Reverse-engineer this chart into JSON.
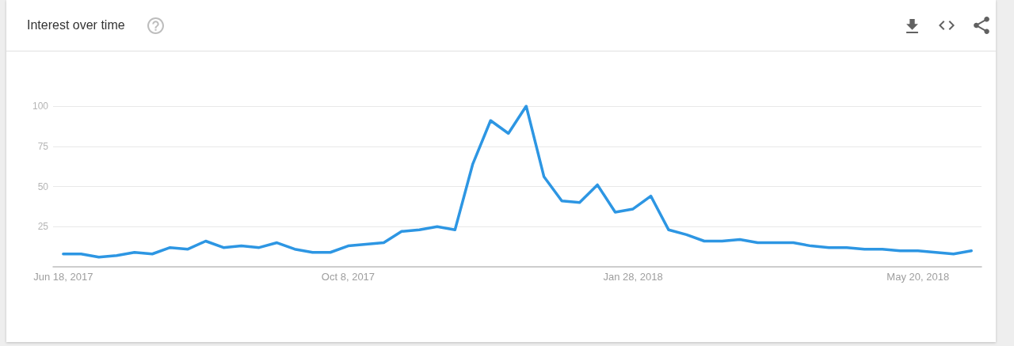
{
  "chart_data": {
    "type": "line",
    "title": "Interest over time",
    "x": [
      "2017-06-18",
      "2017-06-25",
      "2017-07-02",
      "2017-07-09",
      "2017-07-16",
      "2017-07-23",
      "2017-07-30",
      "2017-08-06",
      "2017-08-13",
      "2017-08-20",
      "2017-08-27",
      "2017-09-03",
      "2017-09-10",
      "2017-09-17",
      "2017-09-24",
      "2017-10-01",
      "2017-10-08",
      "2017-10-15",
      "2017-10-22",
      "2017-10-29",
      "2017-11-05",
      "2017-11-12",
      "2017-11-19",
      "2017-11-26",
      "2017-12-03",
      "2017-12-10",
      "2017-12-17",
      "2017-12-24",
      "2017-12-31",
      "2018-01-07",
      "2018-01-14",
      "2018-01-21",
      "2018-01-28",
      "2018-02-04",
      "2018-02-11",
      "2018-02-18",
      "2018-02-25",
      "2018-03-04",
      "2018-03-11",
      "2018-03-18",
      "2018-03-25",
      "2018-04-01",
      "2018-04-08",
      "2018-04-15",
      "2018-04-22",
      "2018-04-29",
      "2018-05-06",
      "2018-05-13",
      "2018-05-20",
      "2018-05-27",
      "2018-06-03",
      "2018-06-10"
    ],
    "series": [
      {
        "color": "#2d96e3",
        "values": [
          8,
          8,
          6,
          7,
          9,
          8,
          12,
          11,
          16,
          12,
          13,
          12,
          15,
          11,
          9,
          9,
          13,
          14,
          15,
          22,
          23,
          25,
          23,
          64,
          91,
          83,
          100,
          56,
          41,
          40,
          51,
          34,
          36,
          44,
          23,
          20,
          16,
          16,
          17,
          15,
          15,
          15,
          13,
          12,
          12,
          11,
          11,
          10,
          10,
          9,
          8,
          10
        ]
      }
    ],
    "xlim": [
      "2017-06-14",
      "2018-06-14"
    ],
    "xticks": [
      {
        "value": "2017-06-18",
        "label": "Jun 18, 2017"
      },
      {
        "value": "2017-10-08",
        "label": "Oct 8, 2017"
      },
      {
        "value": "2018-01-28",
        "label": "Jan 28, 2018"
      },
      {
        "value": "2018-05-20",
        "label": "May 20, 2018"
      }
    ],
    "ylim": [
      0,
      100
    ],
    "yticks": [
      25,
      50,
      75,
      100
    ],
    "grid": "y",
    "marker": "none",
    "line_style": "solid"
  }
}
